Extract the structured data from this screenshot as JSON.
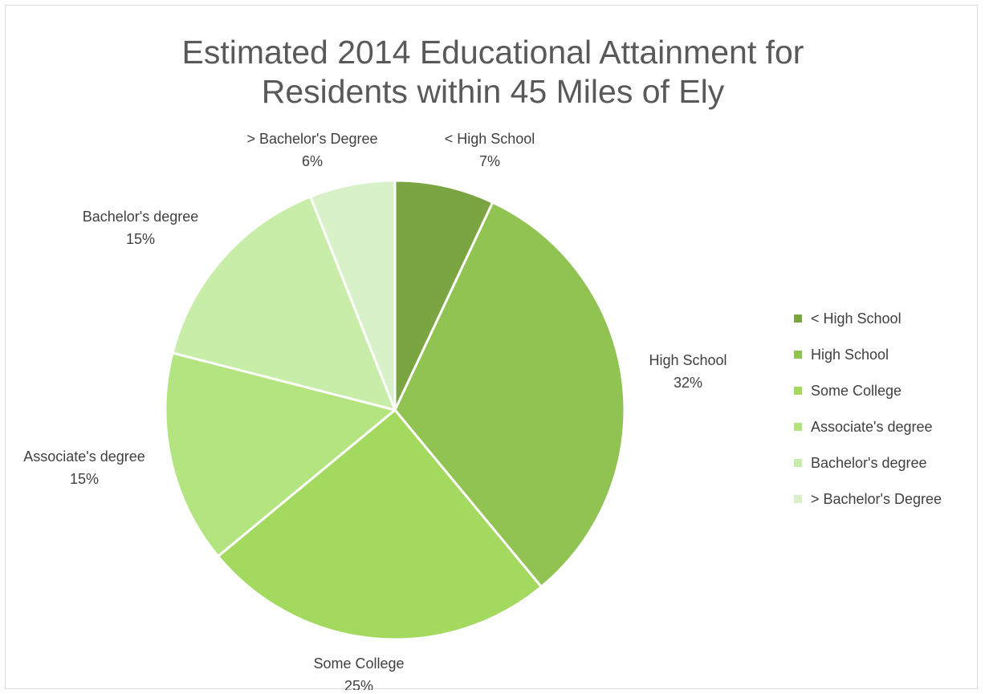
{
  "chart_data": {
    "type": "pie",
    "title": "Estimated 2014 Educational Attainment for Residents within 45 Miles of Ely",
    "title_lines": [
      "Estimated 2014 Educational Attainment for",
      "Residents within 45 Miles of Ely"
    ],
    "categories": [
      "< High School",
      "High School",
      "Some College",
      "Associate's degree",
      "Bachelor's degree",
      "> Bachelor's Degree"
    ],
    "values": [
      7,
      32,
      25,
      15,
      15,
      6
    ],
    "value_labels": [
      "7%",
      "32%",
      "25%",
      "15%",
      "15%",
      "6%"
    ],
    "colors": [
      "#7ba542",
      "#90c352",
      "#a2d95e",
      "#b3e47f",
      "#c8eda8",
      "#d8f1c8"
    ],
    "legend_position": "right",
    "start_angle": "12 o'clock, clockwise"
  }
}
